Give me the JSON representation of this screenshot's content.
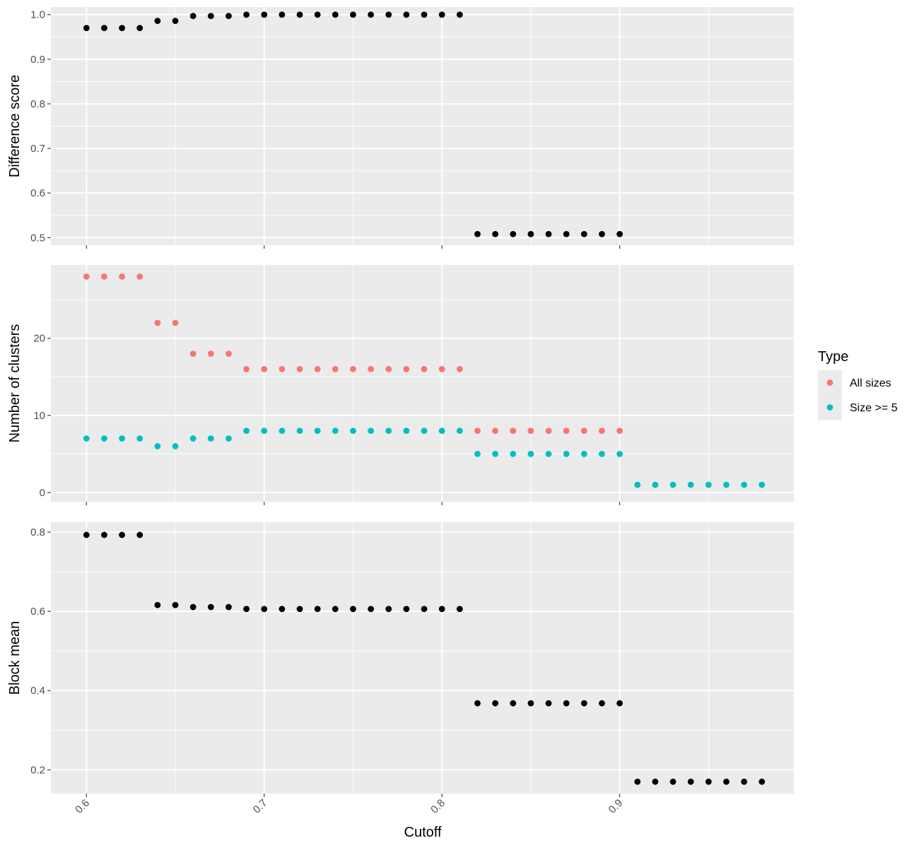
{
  "chart_data": {
    "type": "scatter",
    "xlabel": "Cutoff",
    "x_ticks": [
      "0.6",
      "0.7",
      "0.8",
      "0.9"
    ],
    "xlim": [
      0.58,
      0.998
    ],
    "legend": {
      "title": "Type",
      "position": "right",
      "entries": [
        {
          "label": "All sizes",
          "color": "#F8766D"
        },
        {
          "label": "Size >= 5",
          "color": "#00BFC4"
        }
      ]
    },
    "panels": [
      {
        "ylabel": "Difference score",
        "ylim": [
          0.483,
          1.017
        ],
        "y_ticks": [
          "0.5",
          "0.6",
          "0.7",
          "0.8",
          "0.9",
          "1.0"
        ],
        "grid": true,
        "series": [
          {
            "color": "#000000",
            "x": [
              0.6,
              0.61,
              0.62,
              0.63,
              0.64,
              0.65,
              0.66,
              0.67,
              0.68,
              0.69,
              0.7,
              0.71,
              0.72,
              0.73,
              0.74,
              0.75,
              0.76,
              0.77,
              0.78,
              0.79,
              0.8,
              0.81,
              0.82,
              0.83,
              0.84,
              0.85,
              0.86,
              0.87,
              0.88,
              0.89,
              0.9
            ],
            "y": [
              0.97,
              0.97,
              0.97,
              0.97,
              0.986,
              0.986,
              0.997,
              0.997,
              0.997,
              1.0,
              1.0,
              1.0,
              1.0,
              1.0,
              1.0,
              1.0,
              1.0,
              1.0,
              1.0,
              1.0,
              1.0,
              1.0,
              0.508,
              0.508,
              0.508,
              0.508,
              0.508,
              0.508,
              0.508,
              0.508,
              0.508
            ]
          }
        ]
      },
      {
        "ylabel": "Number of clusters",
        "ylim": [
          -1.2,
          29.5
        ],
        "y_ticks": [
          "0",
          "10",
          "20"
        ],
        "grid": true,
        "series": [
          {
            "name": "All sizes",
            "color": "#F8766D",
            "x": [
              0.6,
              0.61,
              0.62,
              0.63,
              0.64,
              0.65,
              0.66,
              0.67,
              0.68,
              0.69,
              0.7,
              0.71,
              0.72,
              0.73,
              0.74,
              0.75,
              0.76,
              0.77,
              0.78,
              0.79,
              0.8,
              0.81,
              0.82,
              0.83,
              0.84,
              0.85,
              0.86,
              0.87,
              0.88,
              0.89,
              0.9
            ],
            "y": [
              28,
              28,
              28,
              28,
              22,
              22,
              18,
              18,
              18,
              16,
              16,
              16,
              16,
              16,
              16,
              16,
              16,
              16,
              16,
              16,
              16,
              16,
              8,
              8,
              8,
              8,
              8,
              8,
              8,
              8,
              8
            ]
          },
          {
            "name": "Size >= 5",
            "color": "#00BFC4",
            "x": [
              0.6,
              0.61,
              0.62,
              0.63,
              0.64,
              0.65,
              0.66,
              0.67,
              0.68,
              0.69,
              0.7,
              0.71,
              0.72,
              0.73,
              0.74,
              0.75,
              0.76,
              0.77,
              0.78,
              0.79,
              0.8,
              0.81,
              0.82,
              0.83,
              0.84,
              0.85,
              0.86,
              0.87,
              0.88,
              0.89,
              0.9,
              0.91,
              0.92,
              0.93,
              0.94,
              0.95,
              0.96,
              0.97,
              0.98
            ],
            "y": [
              7,
              7,
              7,
              7,
              6,
              6,
              7,
              7,
              7,
              8,
              8,
              8,
              8,
              8,
              8,
              8,
              8,
              8,
              8,
              8,
              8,
              8,
              5,
              5,
              5,
              5,
              5,
              5,
              5,
              5,
              5,
              1,
              1,
              1,
              1,
              1,
              1,
              1,
              1
            ]
          }
        ]
      },
      {
        "ylabel": "Block mean",
        "ylim": [
          0.14,
          0.825
        ],
        "y_ticks": [
          "0.2",
          "0.4",
          "0.6",
          "0.8"
        ],
        "grid": true,
        "series": [
          {
            "color": "#000000",
            "x": [
              0.6,
              0.61,
              0.62,
              0.63,
              0.64,
              0.65,
              0.66,
              0.67,
              0.68,
              0.69,
              0.7,
              0.71,
              0.72,
              0.73,
              0.74,
              0.75,
              0.76,
              0.77,
              0.78,
              0.79,
              0.8,
              0.81,
              0.82,
              0.83,
              0.84,
              0.85,
              0.86,
              0.87,
              0.88,
              0.89,
              0.9,
              0.91,
              0.92,
              0.93,
              0.94,
              0.95,
              0.96,
              0.97,
              0.98
            ],
            "y": [
              0.793,
              0.793,
              0.793,
              0.793,
              0.616,
              0.616,
              0.611,
              0.611,
              0.611,
              0.606,
              0.606,
              0.606,
              0.606,
              0.606,
              0.606,
              0.606,
              0.606,
              0.606,
              0.606,
              0.606,
              0.606,
              0.606,
              0.368,
              0.368,
              0.368,
              0.368,
              0.368,
              0.368,
              0.368,
              0.368,
              0.368,
              0.17,
              0.17,
              0.17,
              0.17,
              0.17,
              0.17,
              0.17,
              0.17
            ]
          }
        ]
      }
    ]
  }
}
